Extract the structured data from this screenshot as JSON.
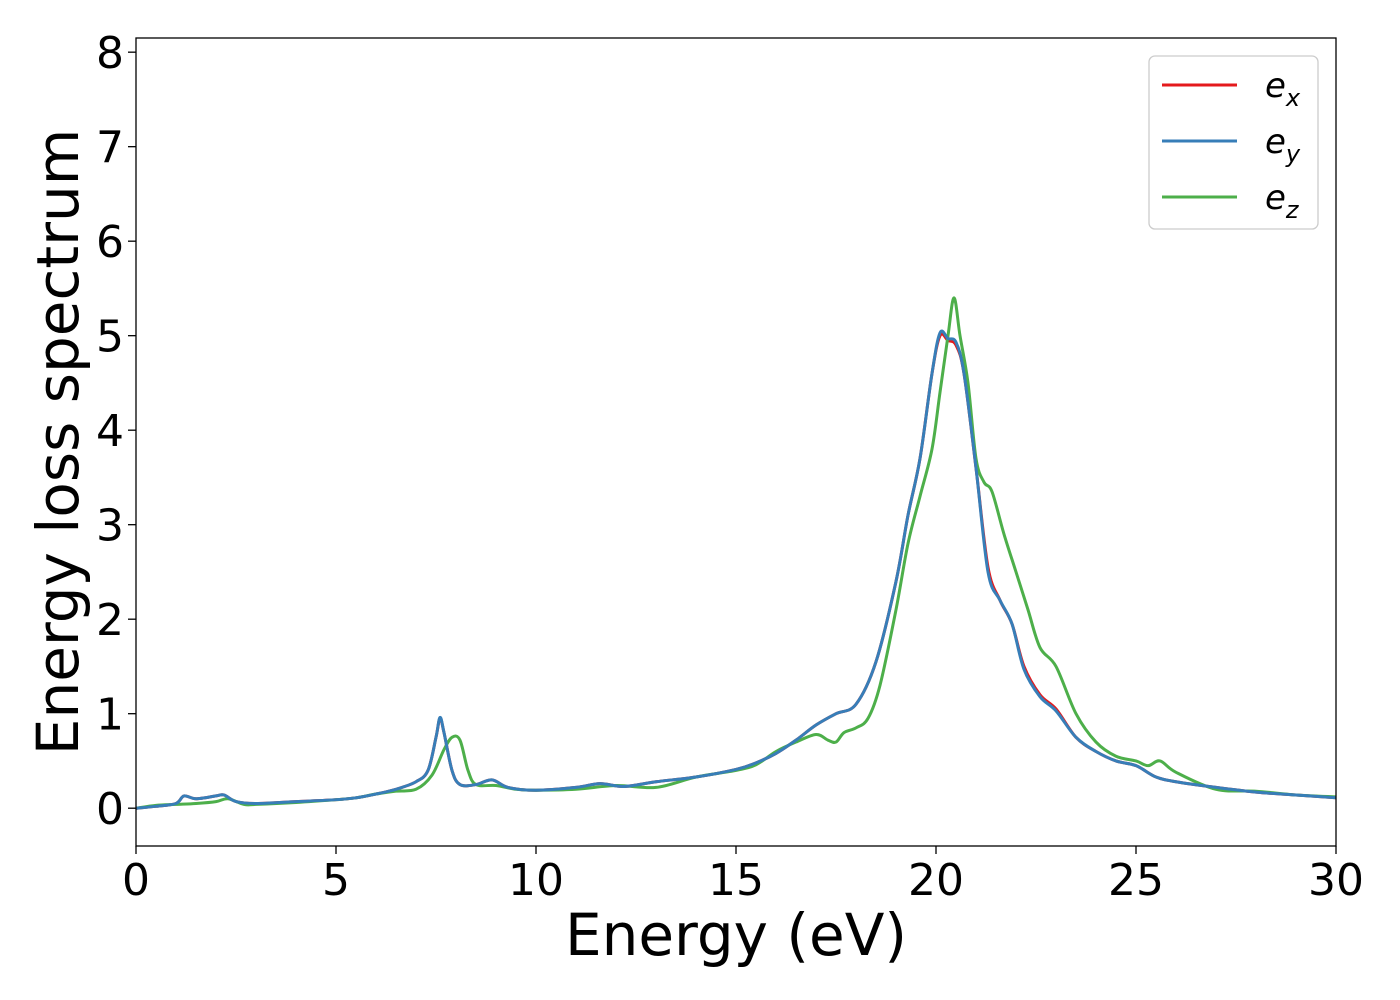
{
  "chart_data": {
    "type": "line",
    "title": "",
    "xlabel": "Energy (eV)",
    "ylabel": "Energy loss spectrum",
    "xlim": [
      0,
      30
    ],
    "ylim": [
      -0.4,
      8.15
    ],
    "xticks": [
      0,
      5,
      10,
      15,
      20,
      25,
      30
    ],
    "yticks": [
      0,
      1,
      2,
      3,
      4,
      5,
      6,
      7,
      8
    ],
    "grid": false,
    "legend_position": "top-right",
    "series": [
      {
        "name": "e_x",
        "label_main": "e",
        "label_sub": "x",
        "color": "#e41a1c",
        "x": [
          0,
          0.5,
          1.0,
          1.2,
          1.5,
          2.0,
          2.2,
          2.5,
          3,
          4,
          5,
          5.5,
          6,
          6.5,
          7,
          7.3,
          7.5,
          7.6,
          7.7,
          7.9,
          8.1,
          8.5,
          8.9,
          9.3,
          10,
          11,
          11.6,
          12.2,
          13,
          14,
          15,
          15.5,
          16,
          16.5,
          17,
          17.5,
          18,
          18.5,
          19,
          19.3,
          19.6,
          19.9,
          20.1,
          20.3,
          20.5,
          20.7,
          21.0,
          21.3,
          21.6,
          21.9,
          22.2,
          22.6,
          23.0,
          23.5,
          24,
          24.5,
          25,
          25.5,
          26,
          27,
          28,
          29,
          30
        ],
        "y": [
          0.0,
          0.02,
          0.05,
          0.13,
          0.1,
          0.13,
          0.14,
          0.07,
          0.05,
          0.07,
          0.09,
          0.11,
          0.15,
          0.2,
          0.28,
          0.4,
          0.75,
          0.95,
          0.8,
          0.4,
          0.25,
          0.25,
          0.3,
          0.22,
          0.19,
          0.22,
          0.26,
          0.23,
          0.28,
          0.33,
          0.41,
          0.48,
          0.58,
          0.72,
          0.88,
          1.0,
          1.1,
          1.55,
          2.4,
          3.1,
          3.7,
          4.6,
          5.0,
          4.95,
          4.9,
          4.6,
          3.6,
          2.55,
          2.2,
          1.95,
          1.5,
          1.2,
          1.05,
          0.75,
          0.6,
          0.5,
          0.45,
          0.33,
          0.28,
          0.22,
          0.17,
          0.14,
          0.11
        ]
      },
      {
        "name": "e_y",
        "label_main": "e",
        "label_sub": "y",
        "color": "#377eb8",
        "x": [
          0,
          0.5,
          1.0,
          1.2,
          1.5,
          2.0,
          2.2,
          2.5,
          3,
          4,
          5,
          5.5,
          6,
          6.5,
          7,
          7.3,
          7.5,
          7.6,
          7.7,
          7.9,
          8.1,
          8.5,
          8.9,
          9.3,
          10,
          11,
          11.6,
          12.2,
          13,
          14,
          15,
          15.5,
          16,
          16.5,
          17,
          17.5,
          18,
          18.5,
          19,
          19.3,
          19.6,
          19.9,
          20.1,
          20.3,
          20.5,
          20.7,
          21.0,
          21.3,
          21.6,
          21.9,
          22.2,
          22.6,
          23.0,
          23.5,
          24,
          24.5,
          25,
          25.5,
          26,
          27,
          28,
          29,
          30
        ],
        "y": [
          0.0,
          0.02,
          0.05,
          0.13,
          0.1,
          0.13,
          0.14,
          0.07,
          0.05,
          0.07,
          0.09,
          0.11,
          0.15,
          0.2,
          0.28,
          0.4,
          0.75,
          0.96,
          0.8,
          0.4,
          0.25,
          0.25,
          0.3,
          0.22,
          0.19,
          0.22,
          0.26,
          0.23,
          0.28,
          0.33,
          0.41,
          0.48,
          0.58,
          0.72,
          0.88,
          1.0,
          1.1,
          1.55,
          2.4,
          3.1,
          3.7,
          4.6,
          5.03,
          4.97,
          4.93,
          4.6,
          3.6,
          2.5,
          2.2,
          1.95,
          1.47,
          1.18,
          1.03,
          0.75,
          0.6,
          0.5,
          0.45,
          0.33,
          0.28,
          0.22,
          0.17,
          0.14,
          0.11
        ]
      },
      {
        "name": "e_z",
        "label_main": "e",
        "label_sub": "z",
        "color": "#4daf4a",
        "x": [
          0,
          0.5,
          1.0,
          1.5,
          2.0,
          2.3,
          2.7,
          3,
          4,
          5,
          5.5,
          6,
          6.5,
          7,
          7.4,
          7.7,
          7.9,
          8.1,
          8.3,
          8.5,
          9,
          9.5,
          10,
          11,
          12,
          13,
          14,
          15,
          15.5,
          16,
          16.5,
          17,
          17.3,
          17.5,
          17.7,
          18,
          18.3,
          18.6,
          19,
          19.3,
          19.6,
          19.9,
          20.1,
          20.3,
          20.45,
          20.6,
          20.8,
          21.0,
          21.2,
          21.4,
          21.7,
          22.0,
          22.3,
          22.6,
          23.0,
          23.5,
          24,
          24.5,
          25,
          25.3,
          25.6,
          26,
          27,
          28,
          29,
          30
        ],
        "y": [
          0.0,
          0.03,
          0.04,
          0.05,
          0.07,
          0.1,
          0.04,
          0.04,
          0.06,
          0.09,
          0.11,
          0.15,
          0.18,
          0.2,
          0.35,
          0.62,
          0.75,
          0.72,
          0.4,
          0.25,
          0.24,
          0.2,
          0.19,
          0.2,
          0.24,
          0.22,
          0.33,
          0.4,
          0.46,
          0.6,
          0.7,
          0.78,
          0.72,
          0.7,
          0.8,
          0.85,
          0.95,
          1.3,
          2.1,
          2.8,
          3.3,
          3.8,
          4.4,
          5.0,
          5.4,
          5.0,
          4.5,
          3.7,
          3.45,
          3.35,
          2.9,
          2.5,
          2.1,
          1.7,
          1.5,
          1.0,
          0.7,
          0.55,
          0.5,
          0.45,
          0.5,
          0.38,
          0.2,
          0.18,
          0.14,
          0.12
        ]
      }
    ]
  }
}
